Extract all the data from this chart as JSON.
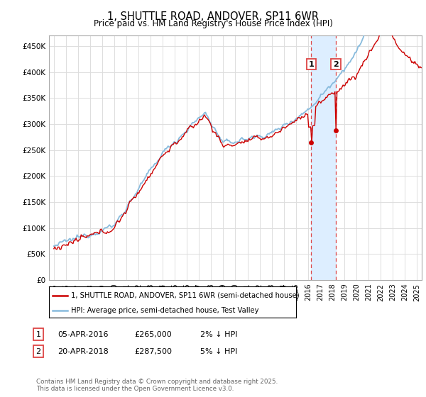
{
  "title": "1, SHUTTLE ROAD, ANDOVER, SP11 6WR",
  "subtitle": "Price paid vs. HM Land Registry's House Price Index (HPI)",
  "legend_line1": "1, SHUTTLE ROAD, ANDOVER, SP11 6WR (semi-detached house)",
  "legend_line2": "HPI: Average price, semi-detached house, Test Valley",
  "footnote": "Contains HM Land Registry data © Crown copyright and database right 2025.\nThis data is licensed under the Open Government Licence v3.0.",
  "sale1_label": "1",
  "sale1_date": "05-APR-2016",
  "sale1_price": "£265,000",
  "sale1_hpi": "2% ↓ HPI",
  "sale2_label": "2",
  "sale2_date": "20-APR-2018",
  "sale2_price": "£287,500",
  "sale2_hpi": "5% ↓ HPI",
  "sale1_x": 2016.27,
  "sale2_x": 2018.31,
  "sale1_y": 265000,
  "sale2_y": 287500,
  "vline1_x": 2016.27,
  "vline2_x": 2018.31,
  "ylim": [
    0,
    470000
  ],
  "xlim_left": 1994.6,
  "xlim_right": 2025.4,
  "yticks": [
    0,
    50000,
    100000,
    150000,
    200000,
    250000,
    300000,
    350000,
    400000,
    450000
  ],
  "ytick_labels": [
    "£0",
    "£50K",
    "£100K",
    "£150K",
    "£200K",
    "£250K",
    "£300K",
    "£350K",
    "£400K",
    "£450K"
  ],
  "xticks": [
    1995,
    1996,
    1997,
    1998,
    1999,
    2000,
    2001,
    2002,
    2003,
    2004,
    2005,
    2006,
    2007,
    2008,
    2009,
    2010,
    2011,
    2012,
    2013,
    2014,
    2015,
    2016,
    2017,
    2018,
    2019,
    2020,
    2021,
    2022,
    2023,
    2024,
    2025
  ],
  "hpi_color": "#88bbdd",
  "price_color": "#cc0000",
  "vline_color": "#dd4444",
  "shade_color": "#ddeeff",
  "grid_color": "#dddddd",
  "background_color": "#ffffff"
}
